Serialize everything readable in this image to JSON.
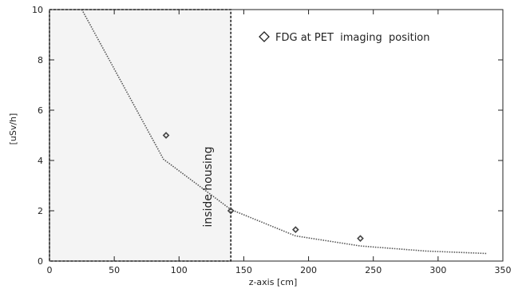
{
  "chart_data": {
    "type": "scatter",
    "title": "",
    "xlabel": "z-axis [cm]",
    "ylabel": "[uSv/h]",
    "xlim": [
      0,
      350
    ],
    "ylim": [
      0,
      10
    ],
    "xticks": [
      0,
      50,
      100,
      150,
      200,
      250,
      300,
      350
    ],
    "yticks": [
      0,
      2,
      4,
      6,
      8,
      10
    ],
    "grid": false,
    "legend_position": "top-right",
    "series": [
      {
        "name": "FDG at PET  imaging  position",
        "marker": "diamond",
        "x": [
          90,
          140,
          190,
          240
        ],
        "y": [
          5.0,
          2.0,
          1.25,
          0.9
        ]
      },
      {
        "name": "",
        "style": "dotted-line",
        "x": [
          25,
          88,
          140,
          190,
          240,
          290,
          338
        ],
        "y": [
          10.0,
          4.05,
          2.05,
          1.0,
          0.6,
          0.4,
          0.3
        ]
      }
    ],
    "shaded_region": {
      "x": [
        0,
        140
      ],
      "y": [
        0,
        10
      ],
      "color": "#f4f4f4"
    },
    "annotations": [
      {
        "text": "inside housing",
        "x": 140,
        "y": 1.6
      }
    ]
  },
  "colors": {
    "axis": "#222222",
    "marker": "#444444",
    "line": "#555555",
    "region_border": "#222222"
  }
}
